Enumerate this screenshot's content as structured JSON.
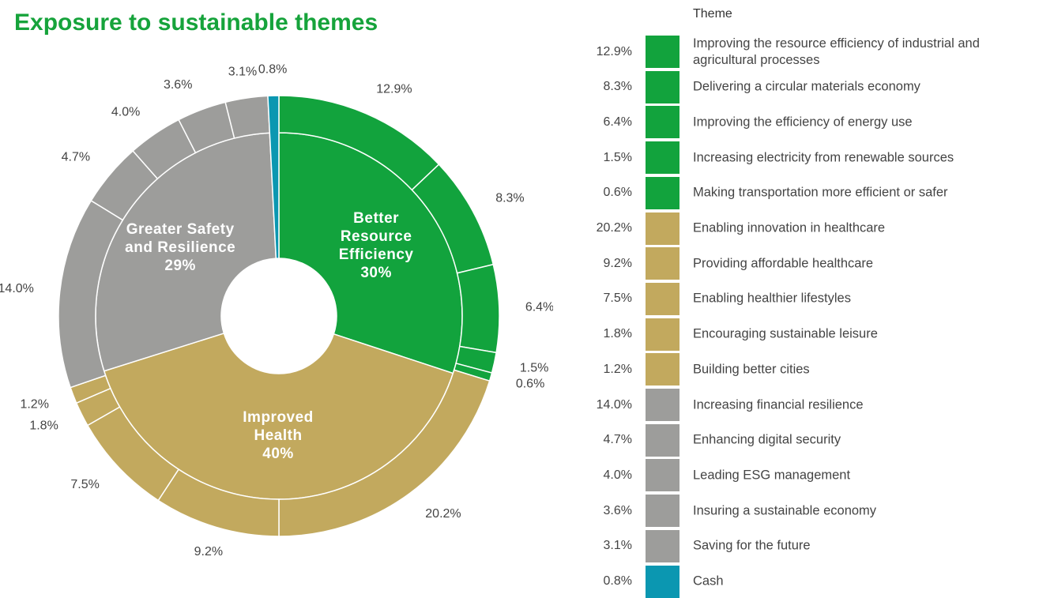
{
  "chart_data": {
    "type": "sunburst",
    "title": "Exposure to sustainable themes",
    "legend_title": "Theme",
    "groups": {
      "names": [
        "Better Resource Efficiency",
        "Improved Health",
        "Greater Safety and Resilience"
      ],
      "values": [
        30,
        40,
        29
      ],
      "value_labels": [
        "30%",
        "40%",
        "29%"
      ],
      "colors": [
        "#12a33d",
        "#c2a95e",
        "#9d9d9b"
      ]
    },
    "categories": [
      "Improving the resource efficiency of industrial and agricultural processes",
      "Delivering a circular materials economy",
      "Improving the efficiency of energy use",
      "Increasing electricity from renewable sources",
      "Making transportation more efficient or safer",
      "Enabling innovation in healthcare",
      "Providing affordable healthcare",
      "Enabling healthier lifestyles",
      "Encouraging sustainable leisure",
      "Building better cities",
      "Increasing financial resilience",
      "Enhancing digital security",
      "Leading ESG management",
      "Insuring a sustainable economy",
      "Saving for the future",
      "Cash"
    ],
    "values": [
      12.9,
      8.3,
      6.4,
      1.5,
      0.6,
      20.2,
      9.2,
      7.5,
      1.8,
      1.2,
      14.0,
      4.7,
      4.0,
      3.6,
      3.1,
      0.8
    ],
    "value_labels": [
      "12.9%",
      "8.3%",
      "6.4%",
      "1.5%",
      "0.6%",
      "20.2%",
      "9.2%",
      "7.5%",
      "1.8%",
      "1.2%",
      "14.0%",
      "4.7%",
      "4.0%",
      "3.6%",
      "3.1%",
      "0.8%"
    ],
    "group_of": [
      0,
      0,
      0,
      0,
      0,
      1,
      1,
      1,
      1,
      1,
      2,
      2,
      2,
      2,
      2,
      null
    ],
    "colors": [
      "#12a33d",
      "#12a33d",
      "#12a33d",
      "#12a33d",
      "#12a33d",
      "#c2a95e",
      "#c2a95e",
      "#c2a95e",
      "#c2a95e",
      "#c2a95e",
      "#9d9d9b",
      "#9d9d9b",
      "#9d9d9b",
      "#9d9d9b",
      "#9d9d9b",
      "#0b97b1"
    ]
  }
}
